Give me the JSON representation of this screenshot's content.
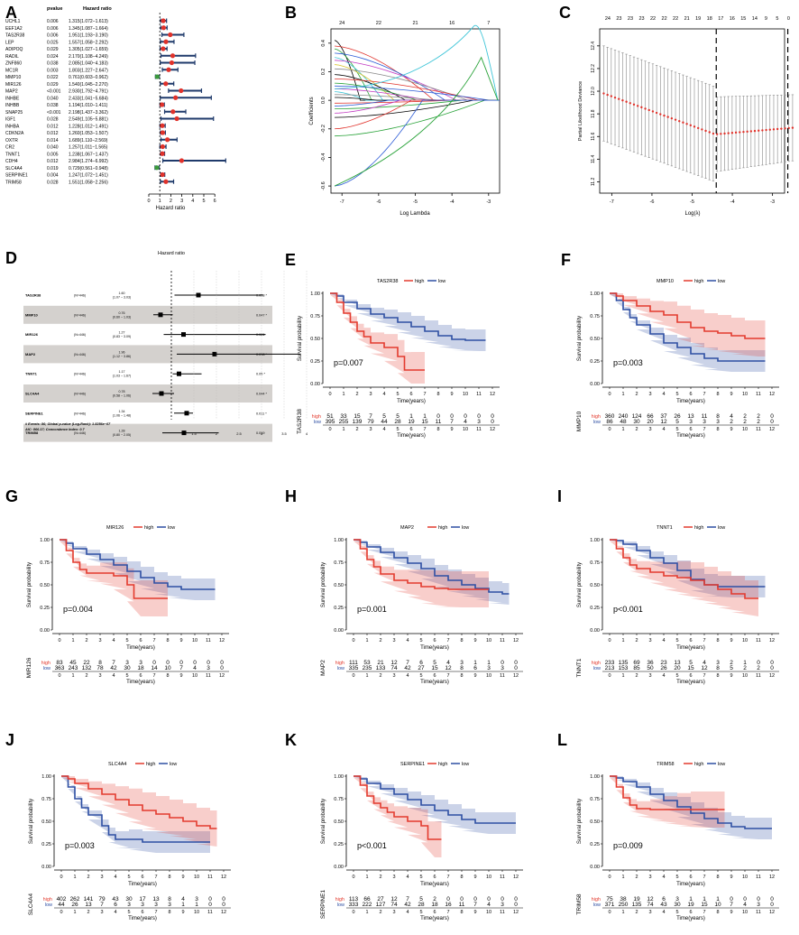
{
  "panel_labels": [
    "A",
    "B",
    "C",
    "D",
    "E",
    "F",
    "G",
    "H",
    "I",
    "J",
    "K",
    "L"
  ],
  "forest_a": {
    "col_pvalue": "pvalue",
    "col_hr": "Hazard ratio",
    "xlabel": "Hazard ratio",
    "xticks": [
      "0",
      "1",
      "2",
      "3",
      "4",
      "5",
      "6"
    ],
    "genes": [
      "UCHL1",
      "EEF1A2",
      "TAS2R38",
      "LEP",
      "ADIPOQ",
      "RADIL",
      "ZNF860",
      "MC1R",
      "MMP10",
      "MIR126",
      "MAP2",
      "INHBE",
      "INHBB",
      "SNAP25",
      "IGF1",
      "INHBA",
      "CDKN2A",
      "OXTR",
      "CR2",
      "TNNT1",
      "CDH4",
      "SLC4A4",
      "SERPINE1",
      "TRIM58"
    ],
    "pvals": [
      "0.006",
      "0.006",
      "0.006",
      "0.025",
      "0.029",
      "0.024",
      "0.038",
      "0.003",
      "0.022",
      "0.029",
      "<0.001",
      "0.040",
      "0.038",
      "<0.001",
      "0.028",
      "0.012",
      "0.012",
      "0.014",
      "0.040",
      "0.005",
      "0.012",
      "0.019",
      "0.004",
      "0.028"
    ],
    "hr_text": [
      "1.315(1.072−1.613)",
      "1.345(1.087−1.664)",
      "1.951(1.193−3.190)",
      "1.557(1.058−2.292)",
      "1.305(1.027−1.659)",
      "2.170(1.108−4.249)",
      "2.085(1.040−4.183)",
      "1.803(1.227−2.647)",
      "0.761(0.603−0.962)",
      "1.540(1.045−2.270)",
      "2.930(1.792−4.791)",
      "2.433(1.041−5.684)",
      "1.194(1.010−1.411)",
      "2.198(1.437−3.362)",
      "2.549(1.105−5.881)",
      "1.228(1.012−1.491)",
      "1.260(1.053−1.507)",
      "1.689(1.110−2.569)",
      "1.257(1.011−1.565)",
      "1.238(1.067−1.437)",
      "2.984(1.274−6.992)",
      "0.729(0.561−0.948)",
      "1.247(1.072−1.451)",
      "1.551(1.058−2.256)"
    ],
    "hr": [
      1.315,
      1.345,
      1.951,
      1.557,
      1.305,
      2.17,
      2.085,
      1.803,
      0.761,
      1.54,
      2.93,
      2.433,
      1.194,
      2.198,
      2.549,
      1.228,
      1.26,
      1.689,
      1.257,
      1.238,
      2.984,
      0.729,
      1.247,
      1.551
    ],
    "lo": [
      1.072,
      1.087,
      1.193,
      1.058,
      1.027,
      1.108,
      1.04,
      1.227,
      0.603,
      1.045,
      1.792,
      1.041,
      1.01,
      1.437,
      1.105,
      1.012,
      1.053,
      1.11,
      1.011,
      1.067,
      1.274,
      0.561,
      1.072,
      1.058
    ],
    "hi": [
      1.613,
      1.664,
      3.19,
      2.292,
      1.659,
      4.249,
      4.183,
      2.647,
      0.962,
      2.27,
      4.791,
      5.684,
      1.411,
      3.362,
      5.881,
      1.491,
      1.507,
      2.569,
      1.565,
      1.437,
      6.992,
      0.948,
      1.451,
      2.256
    ]
  },
  "lasso_b": {
    "xlabel": "Log Lambda",
    "ylabel": "Coefficients",
    "xticks": [
      "-7",
      "-6",
      "-5",
      "-4",
      "-3"
    ],
    "yticks": [
      "-0.6",
      "-0.4",
      "-0.2",
      "0.0",
      "0.2",
      "0.4"
    ],
    "top_ticks": [
      "24",
      "22",
      "21",
      "16",
      "7"
    ]
  },
  "cv_c": {
    "xlabel": "Log(λ)",
    "ylabel": "Partial Likelihood Deviance",
    "xticks": [
      "-7",
      "-6",
      "-5",
      "-4",
      "-3"
    ],
    "yticks": [
      "11.2",
      "11.4",
      "11.6",
      "11.8",
      "12.0",
      "12.2",
      "12.4"
    ],
    "top_ticks": [
      "24",
      "23",
      "23",
      "23",
      "22",
      "22",
      "22",
      "21",
      "19",
      "18",
      "17",
      "16",
      "15",
      "14",
      "9",
      "5",
      "0"
    ]
  },
  "forest_d": {
    "title": "Hazard ratio",
    "genes": [
      "TAS2R38",
      "MMP10",
      "MIR126",
      "MAP2",
      "TNNT1",
      "SLC4A4",
      "SERPINE1",
      "TRIM58"
    ],
    "n": [
      "(N=446)",
      "(N=446)",
      "(N=446)",
      "(N=446)",
      "(N=446)",
      "(N=446)",
      "(N=446)",
      "(N=446)"
    ],
    "hr_a": [
      "1.60",
      "0.76",
      "1.27",
      "1.96",
      "1.17",
      "0.78",
      "1.34",
      "1.28"
    ],
    "hr_b": [
      "(1.07 − 3.03)",
      "(0.60 − 1.03)",
      "(0.83 − 3.09)",
      "(1.12 − 3.86)",
      "(1.03 − 1.67)",
      "(0.58 − 1.06)",
      "(1.06 − 1.48)",
      "(0.80 − 2.05)"
    ],
    "p": [
      "0.028 *",
      "0.047 *",
      "0.081",
      "0.018 *",
      "0.05 *",
      "0.044 *",
      "0.011 *",
      "0.019"
    ],
    "hr": [
      1.6,
      0.76,
      1.27,
      1.96,
      1.17,
      0.78,
      1.34,
      1.28
    ],
    "lo": [
      1.07,
      0.6,
      0.83,
      1.12,
      1.03,
      0.58,
      1.06,
      0.8
    ],
    "hi": [
      3.03,
      1.03,
      3.09,
      3.86,
      1.67,
      1.06,
      1.48,
      2.05
    ],
    "xticks": [
      "1.5",
      "2",
      "2.5",
      "3",
      "3.5",
      "4"
    ],
    "foot1": "# Events: 86; Global p-value (Log-Rank): 1.8256e−07",
    "foot2": "AIC: 866.17; Concordance Index: 0.7"
  },
  "chart_data": [
    {
      "type": "line",
      "panel": "E",
      "title": "TAS2R38",
      "pvalue": "p=0.007",
      "ylabel": "Survival probability",
      "xlabel": "Time(years)",
      "risk_label": "TAS2R38",
      "legend_high": "high",
      "legend_low": "low",
      "low_color": "#2E4FA3",
      "high_color": "#E33A2E",
      "high_x": [
        0,
        0.5,
        1,
        1.5,
        2,
        2.5,
        3,
        4,
        5,
        5.5,
        6,
        7
      ],
      "high_y": [
        1,
        0.9,
        0.78,
        0.68,
        0.58,
        0.52,
        0.45,
        0.4,
        0.3,
        0.15,
        0.15,
        0.15
      ],
      "low_x": [
        0,
        0.5,
        1,
        2,
        3,
        4,
        5,
        6,
        7,
        8,
        9,
        10,
        11,
        11.5
      ],
      "low_y": [
        1,
        0.97,
        0.9,
        0.83,
        0.77,
        0.73,
        0.68,
        0.63,
        0.58,
        0.53,
        0.49,
        0.48,
        0.48,
        0.48
      ],
      "risk_high": [
        "51",
        "33",
        "15",
        "7",
        "5",
        "5",
        "1",
        "1",
        "0",
        "0",
        "0",
        "0",
        "0"
      ],
      "risk_low": [
        "395",
        "255",
        "139",
        "79",
        "44",
        "28",
        "19",
        "15",
        "11",
        "7",
        "4",
        "3",
        "0"
      ]
    },
    {
      "type": "line",
      "panel": "F",
      "title": "MMP10",
      "pvalue": "p=0.003",
      "ylabel": "Survival probability",
      "xlabel": "Time(years)",
      "risk_label": "MMP10",
      "legend_high": "high",
      "legend_low": "low",
      "low_color": "#2E4FA3",
      "high_color": "#E33A2E",
      "high_x": [
        0,
        0.5,
        1,
        2,
        3,
        4,
        5,
        6,
        7,
        8,
        9,
        10,
        11,
        11.5
      ],
      "high_y": [
        1,
        0.97,
        0.92,
        0.86,
        0.8,
        0.76,
        0.68,
        0.62,
        0.58,
        0.56,
        0.53,
        0.5,
        0.5,
        0.5
      ],
      "low_x": [
        0,
        0.5,
        1,
        1.5,
        2,
        3,
        4,
        5,
        6,
        7,
        8,
        9,
        11.5
      ],
      "low_y": [
        1,
        0.92,
        0.82,
        0.73,
        0.65,
        0.55,
        0.45,
        0.4,
        0.33,
        0.28,
        0.25,
        0.25,
        0.25
      ],
      "risk_high": [
        "360",
        "240",
        "124",
        "66",
        "37",
        "26",
        "13",
        "11",
        "8",
        "4",
        "2",
        "2",
        "0"
      ],
      "risk_low": [
        "86",
        "48",
        "30",
        "20",
        "12",
        "5",
        "3",
        "3",
        "3",
        "2",
        "2",
        "2",
        "0"
      ]
    },
    {
      "type": "line",
      "panel": "G",
      "title": "MIR126",
      "pvalue": "p=0.004",
      "ylabel": "Survival probability",
      "xlabel": "Time(years)",
      "risk_label": "MIR126",
      "legend_high": "high",
      "legend_low": "low",
      "low_color": "#2E4FA3",
      "high_color": "#E33A2E",
      "high_x": [
        0,
        0.5,
        1,
        1.5,
        2,
        3,
        4,
        5,
        5.5,
        6,
        7,
        8
      ],
      "high_y": [
        1,
        0.88,
        0.75,
        0.67,
        0.63,
        0.63,
        0.6,
        0.5,
        0.35,
        0.35,
        0.35,
        0.35
      ],
      "low_x": [
        0,
        0.5,
        1,
        2,
        3,
        4,
        5,
        6,
        7,
        8,
        9,
        10,
        11,
        11.5
      ],
      "low_y": [
        1,
        0.96,
        0.9,
        0.84,
        0.78,
        0.72,
        0.65,
        0.58,
        0.52,
        0.48,
        0.45,
        0.45,
        0.45,
        0.45
      ],
      "risk_high": [
        "83",
        "45",
        "22",
        "8",
        "7",
        "3",
        "3",
        "0",
        "0",
        "0",
        "0",
        "0",
        "0"
      ],
      "risk_low": [
        "363",
        "243",
        "132",
        "78",
        "42",
        "30",
        "18",
        "14",
        "10",
        "7",
        "4",
        "3",
        "0"
      ]
    },
    {
      "type": "line",
      "panel": "H",
      "title": "MAP2",
      "pvalue": "p=0.001",
      "ylabel": "Survival probability",
      "xlabel": "Time(years)",
      "risk_label": "MAP2",
      "legend_high": "high",
      "legend_low": "low",
      "low_color": "#2E4FA3",
      "high_color": "#E33A2E",
      "high_x": [
        0,
        0.5,
        1,
        1.5,
        2,
        3,
        4,
        5,
        6,
        7,
        8,
        9,
        10
      ],
      "high_y": [
        1,
        0.9,
        0.78,
        0.7,
        0.62,
        0.55,
        0.52,
        0.48,
        0.46,
        0.45,
        0.45,
        0.45,
        0.45
      ],
      "low_x": [
        0,
        0.5,
        1,
        2,
        3,
        4,
        5,
        6,
        7,
        8,
        9,
        10,
        11,
        11.5
      ],
      "low_y": [
        1,
        0.97,
        0.92,
        0.86,
        0.8,
        0.74,
        0.68,
        0.6,
        0.55,
        0.5,
        0.46,
        0.42,
        0.4,
        0.4
      ],
      "risk_high": [
        "111",
        "53",
        "21",
        "12",
        "7",
        "6",
        "5",
        "4",
        "3",
        "1",
        "1",
        "0",
        "0"
      ],
      "risk_low": [
        "335",
        "235",
        "133",
        "74",
        "42",
        "27",
        "15",
        "12",
        "8",
        "6",
        "3",
        "3",
        "0"
      ]
    },
    {
      "type": "line",
      "panel": "I",
      "title": "TNNT1",
      "pvalue": "p<0.001",
      "ylabel": "Survival probability",
      "xlabel": "Time(years)",
      "risk_label": "TNNT1",
      "legend_high": "high",
      "legend_low": "low",
      "low_color": "#2E4FA3",
      "high_color": "#E33A2E",
      "high_x": [
        0,
        0.5,
        1,
        1.5,
        2,
        3,
        4,
        5,
        6,
        7,
        8,
        9,
        10,
        11
      ],
      "high_y": [
        1,
        0.9,
        0.8,
        0.72,
        0.68,
        0.64,
        0.6,
        0.58,
        0.55,
        0.5,
        0.45,
        0.4,
        0.35,
        0.35
      ],
      "low_x": [
        0,
        0.5,
        1,
        2,
        3,
        4,
        5,
        6,
        7,
        8,
        9,
        10,
        11,
        11.5
      ],
      "low_y": [
        1,
        0.99,
        0.95,
        0.88,
        0.8,
        0.74,
        0.66,
        0.56,
        0.5,
        0.48,
        0.48,
        0.48,
        0.48,
        0.48
      ],
      "risk_high": [
        "233",
        "135",
        "69",
        "36",
        "23",
        "13",
        "5",
        "4",
        "3",
        "2",
        "1",
        "0",
        "0"
      ],
      "risk_low": [
        "213",
        "153",
        "85",
        "50",
        "26",
        "20",
        "15",
        "12",
        "8",
        "5",
        "2",
        "2",
        "0"
      ]
    },
    {
      "type": "line",
      "panel": "J",
      "title": "SLC4A4",
      "pvalue": "p=0.003",
      "ylabel": "Survival probability",
      "xlabel": "Time(years)",
      "risk_label": "SLC4A4",
      "legend_high": "high",
      "legend_low": "low",
      "low_color": "#2E4FA3",
      "high_color": "#E33A2E",
      "high_x": [
        0,
        0.5,
        1,
        2,
        3,
        4,
        5,
        6,
        7,
        8,
        9,
        10,
        11,
        11.5
      ],
      "high_y": [
        1,
        0.97,
        0.92,
        0.86,
        0.8,
        0.74,
        0.68,
        0.62,
        0.58,
        0.54,
        0.5,
        0.45,
        0.42,
        0.42
      ],
      "low_x": [
        0,
        0.5,
        1,
        1.5,
        2,
        3,
        3.5,
        4,
        5,
        6,
        7,
        8,
        9,
        10,
        11
      ],
      "low_y": [
        1,
        0.88,
        0.75,
        0.65,
        0.57,
        0.45,
        0.35,
        0.3,
        0.3,
        0.27,
        0.27,
        0.27,
        0.27,
        0.27,
        0.27
      ],
      "risk_high": [
        "402",
        "262",
        "141",
        "79",
        "43",
        "30",
        "17",
        "13",
        "8",
        "4",
        "3",
        "0",
        "0"
      ],
      "risk_low": [
        "44",
        "26",
        "13",
        "7",
        "6",
        "3",
        "3",
        "3",
        "3",
        "1",
        "1",
        "0",
        "0"
      ]
    },
    {
      "type": "line",
      "panel": "K",
      "title": "SERPINE1",
      "pvalue": "p<0.001",
      "ylabel": "Survival probability",
      "xlabel": "Time(years)",
      "risk_label": "SERPINE1",
      "legend_high": "high",
      "legend_low": "low",
      "low_color": "#2E4FA3",
      "high_color": "#E33A2E",
      "high_x": [
        0,
        0.5,
        1,
        1.5,
        2,
        2.5,
        3,
        4,
        5,
        5.5,
        6,
        6.5
      ],
      "high_y": [
        1,
        0.9,
        0.78,
        0.7,
        0.65,
        0.6,
        0.55,
        0.5,
        0.45,
        0.3,
        0.3,
        0.3
      ],
      "low_x": [
        0,
        0.5,
        1,
        2,
        3,
        4,
        5,
        6,
        7,
        8,
        9,
        10,
        11,
        12
      ],
      "low_y": [
        1,
        0.97,
        0.92,
        0.86,
        0.8,
        0.74,
        0.68,
        0.62,
        0.57,
        0.52,
        0.48,
        0.48,
        0.48,
        0.48
      ],
      "risk_high": [
        "113",
        "66",
        "27",
        "12",
        "7",
        "5",
        "2",
        "0",
        "0",
        "0",
        "0",
        "0",
        "0"
      ],
      "risk_low": [
        "333",
        "222",
        "127",
        "74",
        "42",
        "28",
        "18",
        "16",
        "11",
        "7",
        "4",
        "3",
        "0"
      ]
    },
    {
      "type": "line",
      "panel": "L",
      "title": "TRIM58",
      "pvalue": "p=0.009",
      "ylabel": "Survival probability",
      "xlabel": "Time(years)",
      "risk_label": "TRIM58",
      "legend_high": "high",
      "legend_low": "low",
      "low_color": "#2E4FA3",
      "high_color": "#E33A2E",
      "high_x": [
        0,
        0.5,
        1,
        1.5,
        2,
        3,
        4,
        5,
        6,
        7,
        8,
        8.5
      ],
      "high_y": [
        1,
        0.88,
        0.76,
        0.68,
        0.64,
        0.63,
        0.63,
        0.63,
        0.63,
        0.63,
        0.63,
        0.63
      ],
      "low_x": [
        0,
        0.5,
        1,
        2,
        3,
        4,
        5,
        6,
        7,
        8,
        9,
        10,
        11,
        12
      ],
      "low_y": [
        1,
        0.98,
        0.94,
        0.88,
        0.8,
        0.73,
        0.66,
        0.59,
        0.53,
        0.48,
        0.44,
        0.42,
        0.42,
        0.42
      ],
      "risk_high": [
        "75",
        "38",
        "19",
        "12",
        "6",
        "3",
        "1",
        "1",
        "1",
        "0",
        "0",
        "0",
        "0"
      ],
      "risk_low": [
        "371",
        "250",
        "135",
        "74",
        "43",
        "30",
        "19",
        "15",
        "10",
        "7",
        "4",
        "3",
        "0"
      ]
    }
  ]
}
